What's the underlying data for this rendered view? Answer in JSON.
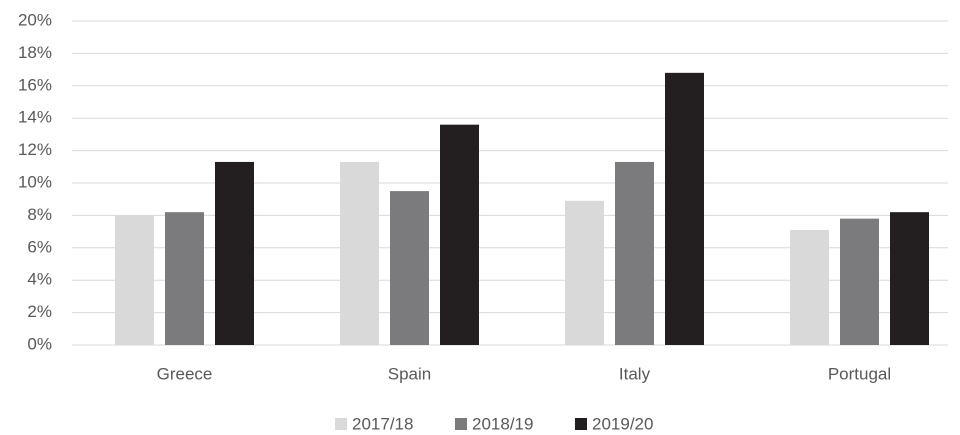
{
  "chart_data": {
    "type": "bar",
    "categories": [
      "Greece",
      "Spain",
      "Italy",
      "Portugal"
    ],
    "series": [
      {
        "name": "2017/18",
        "color": "#d9d9da",
        "values": [
          8.0,
          11.3,
          8.9,
          7.1
        ]
      },
      {
        "name": "2018/19",
        "color": "#7b7b7d",
        "values": [
          8.2,
          9.5,
          11.3,
          7.8
        ]
      },
      {
        "name": "2019/20",
        "color": "#231f20",
        "values": [
          11.3,
          13.6,
          16.8,
          8.2
        ]
      }
    ],
    "ylim": [
      0,
      20
    ],
    "yticks": [
      {
        "value": 0,
        "label": "0%"
      },
      {
        "value": 2,
        "label": "2%"
      },
      {
        "value": 4,
        "label": "4%"
      },
      {
        "value": 6,
        "label": "6%"
      },
      {
        "value": 8,
        "label": "8%"
      },
      {
        "value": 10,
        "label": "10%"
      },
      {
        "value": 12,
        "label": "12%"
      },
      {
        "value": 14,
        "label": "14%"
      },
      {
        "value": 16,
        "label": "16%"
      },
      {
        "value": 18,
        "label": "18%"
      },
      {
        "value": 20,
        "label": "20%"
      }
    ],
    "grid": true,
    "legend": "bottom"
  }
}
